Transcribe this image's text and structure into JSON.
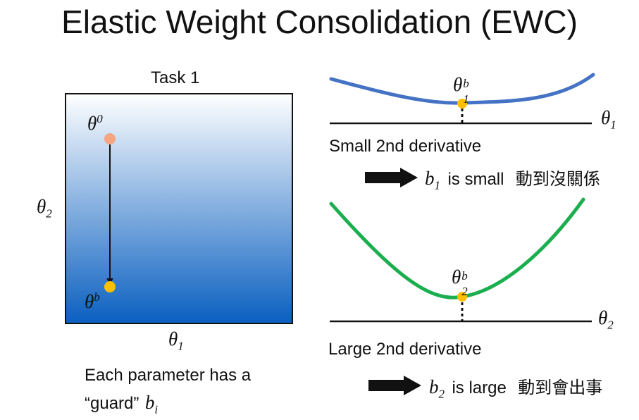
{
  "title": "Elastic Weight Consolidation (EWC)",
  "left_panel": {
    "task_label": "Task 1",
    "start_point": {
      "symbol": "θ",
      "superscript": "0"
    },
    "end_point": {
      "symbol": "θ",
      "superscript": "b"
    },
    "x_axis": {
      "symbol": "θ",
      "subscript": "1"
    },
    "y_axis": {
      "symbol": "θ",
      "subscript": "2"
    },
    "caption_line1": "Each parameter has a",
    "caption_line2_text": "“guard”",
    "caption_line2_symbol": "b",
    "caption_line2_subscript": "i"
  },
  "top_curve": {
    "point": {
      "symbol": "θ",
      "subscript": "1",
      "superscript": "b"
    },
    "axis": {
      "symbol": "θ",
      "subscript": "1"
    },
    "label": "Small 2nd derivative",
    "conclusion": {
      "symbol": "b",
      "subscript": "1",
      "text": "is small",
      "cjk": "動到沒關係"
    },
    "color": "#4472C4"
  },
  "bottom_curve": {
    "point": {
      "symbol": "θ",
      "subscript": "2",
      "superscript": "b"
    },
    "axis": {
      "symbol": "θ",
      "subscript": "2"
    },
    "label": "Large 2nd derivative",
    "conclusion": {
      "symbol": "b",
      "subscript": "2",
      "text": "is large",
      "cjk": "動到會出事"
    },
    "color": "#1AAE4E"
  },
  "colors": {
    "point": "#FFC000",
    "start_point": "#F4A582",
    "gradient_top": "#FFFFFF",
    "gradient_bottom": "#0A5FC0"
  }
}
